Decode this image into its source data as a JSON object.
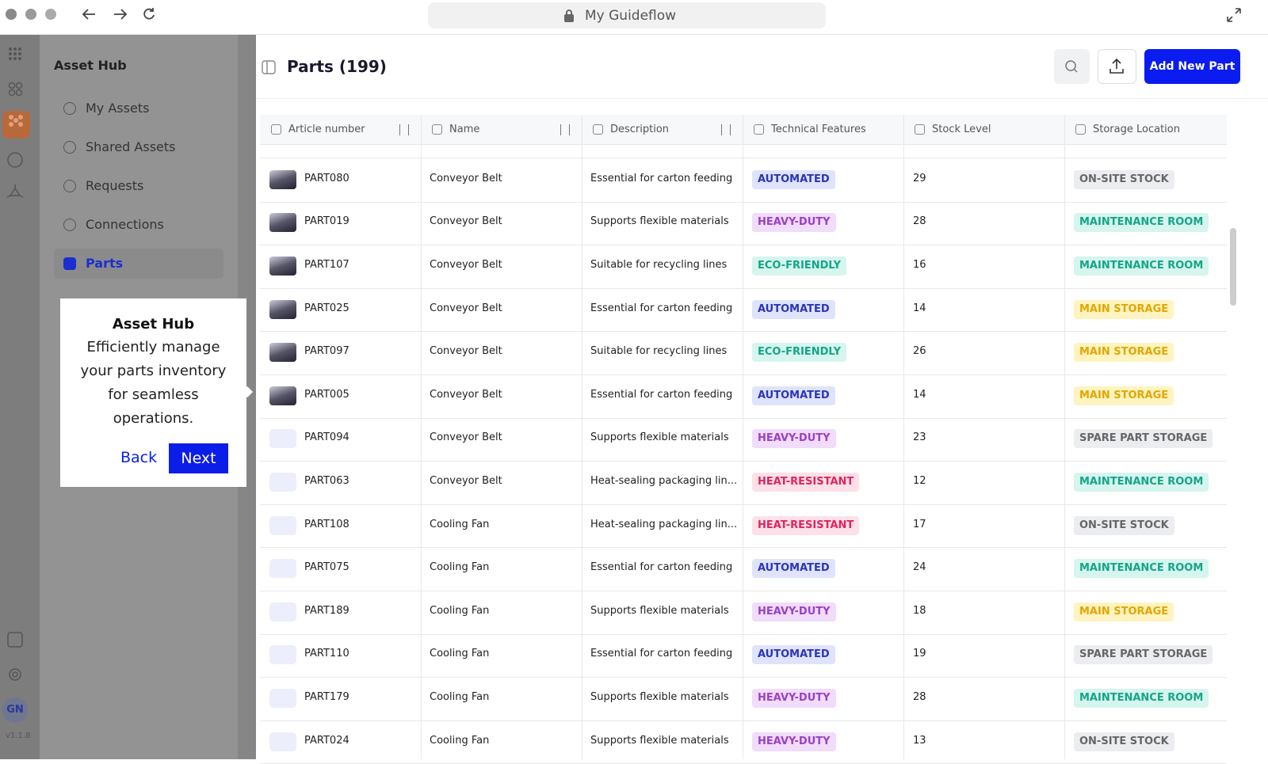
{
  "browser": {
    "address": "My Guideflow"
  },
  "sidebar": {
    "title": "Asset Hub",
    "items": [
      "My Assets",
      "Shared Assets",
      "Requests",
      "Connections",
      "Parts"
    ],
    "avatar": "GN",
    "version": "v1.1.8"
  },
  "tooltip": {
    "title": "Asset Hub",
    "text": "Efficiently manage your parts inventory for seamless operations.",
    "back": "Back",
    "next": "Next"
  },
  "page": {
    "title": "Parts (199)",
    "add_button": "Add New Part"
  },
  "table": {
    "columns": [
      "Article number",
      "Name",
      "Description",
      "Technical Features",
      "Stock Level",
      "Storage Location"
    ],
    "rows": [
      {
        "thumbnail": "photo",
        "article": "PART080",
        "name": "Conveyor Belt",
        "description": "Essential for carton feeding",
        "feature": {
          "label": "AUTOMATED",
          "color": "blue"
        },
        "stock": 29,
        "location": {
          "label": "ON-SITE STOCK",
          "color": "gray"
        }
      },
      {
        "thumbnail": "photo",
        "article": "PART019",
        "name": "Conveyor Belt",
        "description": "Supports flexible materials",
        "feature": {
          "label": "HEAVY-DUTY",
          "color": "purple"
        },
        "stock": 28,
        "location": {
          "label": "MAINTENANCE ROOM",
          "color": "teal"
        }
      },
      {
        "thumbnail": "photo",
        "article": "PART107",
        "name": "Conveyor Belt",
        "description": "Suitable for recycling lines",
        "feature": {
          "label": "ECO-FRIENDLY",
          "color": "teal"
        },
        "stock": 16,
        "location": {
          "label": "MAINTENANCE ROOM",
          "color": "teal"
        }
      },
      {
        "thumbnail": "photo",
        "article": "PART025",
        "name": "Conveyor Belt",
        "description": "Essential for carton feeding",
        "feature": {
          "label": "AUTOMATED",
          "color": "blue"
        },
        "stock": 14,
        "location": {
          "label": "MAIN STORAGE",
          "color": "yellow"
        }
      },
      {
        "thumbnail": "photo",
        "article": "PART097",
        "name": "Conveyor Belt",
        "description": "Suitable for recycling lines",
        "feature": {
          "label": "ECO-FRIENDLY",
          "color": "teal"
        },
        "stock": 26,
        "location": {
          "label": "MAIN STORAGE",
          "color": "yellow"
        }
      },
      {
        "thumbnail": "photo",
        "article": "PART005",
        "name": "Conveyor Belt",
        "description": "Essential for carton feeding",
        "feature": {
          "label": "AUTOMATED",
          "color": "blue"
        },
        "stock": 14,
        "location": {
          "label": "MAIN STORAGE",
          "color": "yellow"
        }
      },
      {
        "thumbnail": "icon",
        "article": "PART094",
        "name": "Conveyor Belt",
        "description": "Supports flexible materials",
        "feature": {
          "label": "HEAVY-DUTY",
          "color": "purple"
        },
        "stock": 23,
        "location": {
          "label": "SPARE PART STORAGE",
          "color": "gray"
        }
      },
      {
        "thumbnail": "icon",
        "article": "PART063",
        "name": "Conveyor Belt",
        "description": "Heat-sealing packaging lin...",
        "feature": {
          "label": "HEAT-RESISTANT",
          "color": "pink"
        },
        "stock": 12,
        "location": {
          "label": "MAINTENANCE ROOM",
          "color": "teal"
        }
      },
      {
        "thumbnail": "icon",
        "article": "PART108",
        "name": "Cooling Fan",
        "description": "Heat-sealing packaging lin...",
        "feature": {
          "label": "HEAT-RESISTANT",
          "color": "pink"
        },
        "stock": 17,
        "location": {
          "label": "ON-SITE STOCK",
          "color": "gray"
        }
      },
      {
        "thumbnail": "icon",
        "article": "PART075",
        "name": "Cooling Fan",
        "description": "Essential for carton feeding",
        "feature": {
          "label": "AUTOMATED",
          "color": "blue"
        },
        "stock": 24,
        "location": {
          "label": "MAINTENANCE ROOM",
          "color": "teal"
        }
      },
      {
        "thumbnail": "icon",
        "article": "PART189",
        "name": "Cooling Fan",
        "description": "Supports flexible materials",
        "feature": {
          "label": "HEAVY-DUTY",
          "color": "purple"
        },
        "stock": 18,
        "location": {
          "label": "MAIN STORAGE",
          "color": "yellow"
        }
      },
      {
        "thumbnail": "icon",
        "article": "PART110",
        "name": "Cooling Fan",
        "description": "Essential for carton feeding",
        "feature": {
          "label": "AUTOMATED",
          "color": "blue"
        },
        "stock": 19,
        "location": {
          "label": "SPARE PART STORAGE",
          "color": "gray"
        }
      },
      {
        "thumbnail": "icon",
        "article": "PART179",
        "name": "Cooling Fan",
        "description": "Supports flexible materials",
        "feature": {
          "label": "HEAVY-DUTY",
          "color": "purple"
        },
        "stock": 28,
        "location": {
          "label": "MAINTENANCE ROOM",
          "color": "teal"
        }
      },
      {
        "thumbnail": "icon",
        "article": "PART024",
        "name": "Cooling Fan",
        "description": "Supports flexible materials",
        "feature": {
          "label": "HEAVY-DUTY",
          "color": "purple"
        },
        "stock": 13,
        "location": {
          "label": "ON-SITE STOCK",
          "color": "gray"
        }
      }
    ]
  }
}
